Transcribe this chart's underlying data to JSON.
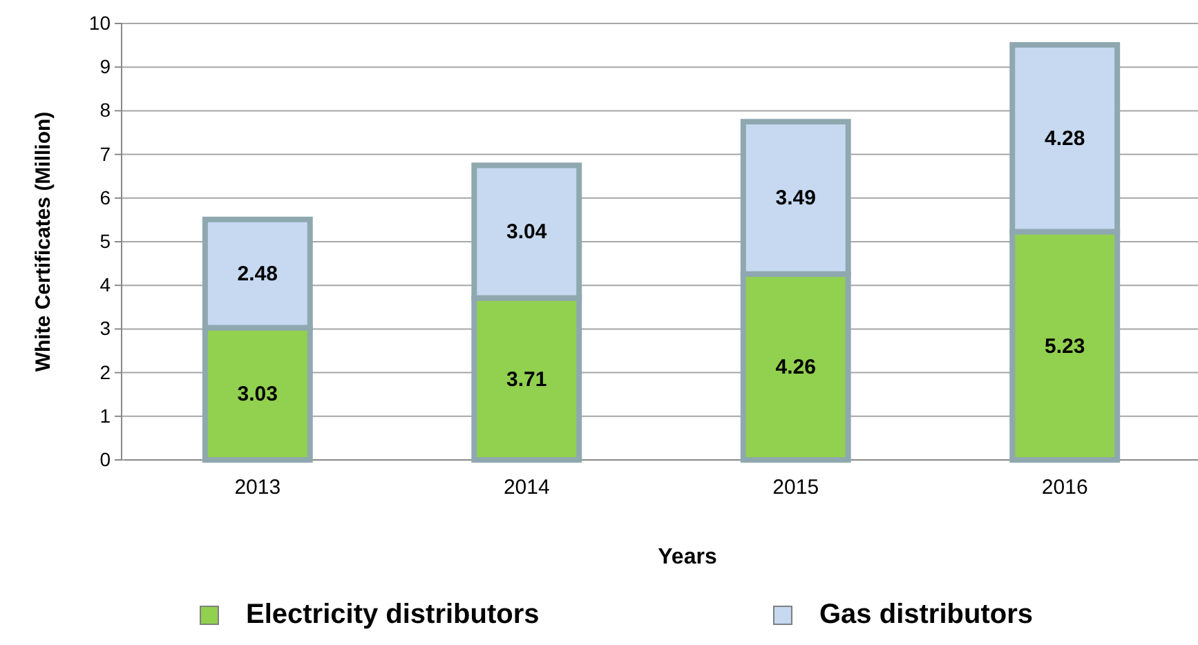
{
  "chart_data": {
    "type": "bar",
    "stacked": true,
    "xlabel": "Years",
    "ylabel": "White Certificates (Million)",
    "categories": [
      "2013",
      "2014",
      "2015",
      "2016"
    ],
    "series": [
      {
        "name": "Electricity distributors",
        "color": "#92d050",
        "values": [
          3.03,
          3.71,
          4.26,
          5.23
        ]
      },
      {
        "name": "Gas distributors",
        "color": "#c6d9f1",
        "values": [
          2.48,
          3.04,
          3.49,
          4.28
        ]
      }
    ],
    "ylim": [
      0,
      10
    ],
    "yticks": [
      0,
      1,
      2,
      3,
      4,
      5,
      6,
      7,
      8,
      9,
      10
    ],
    "grid": "y",
    "data_labels": true,
    "legend": "bottom"
  }
}
